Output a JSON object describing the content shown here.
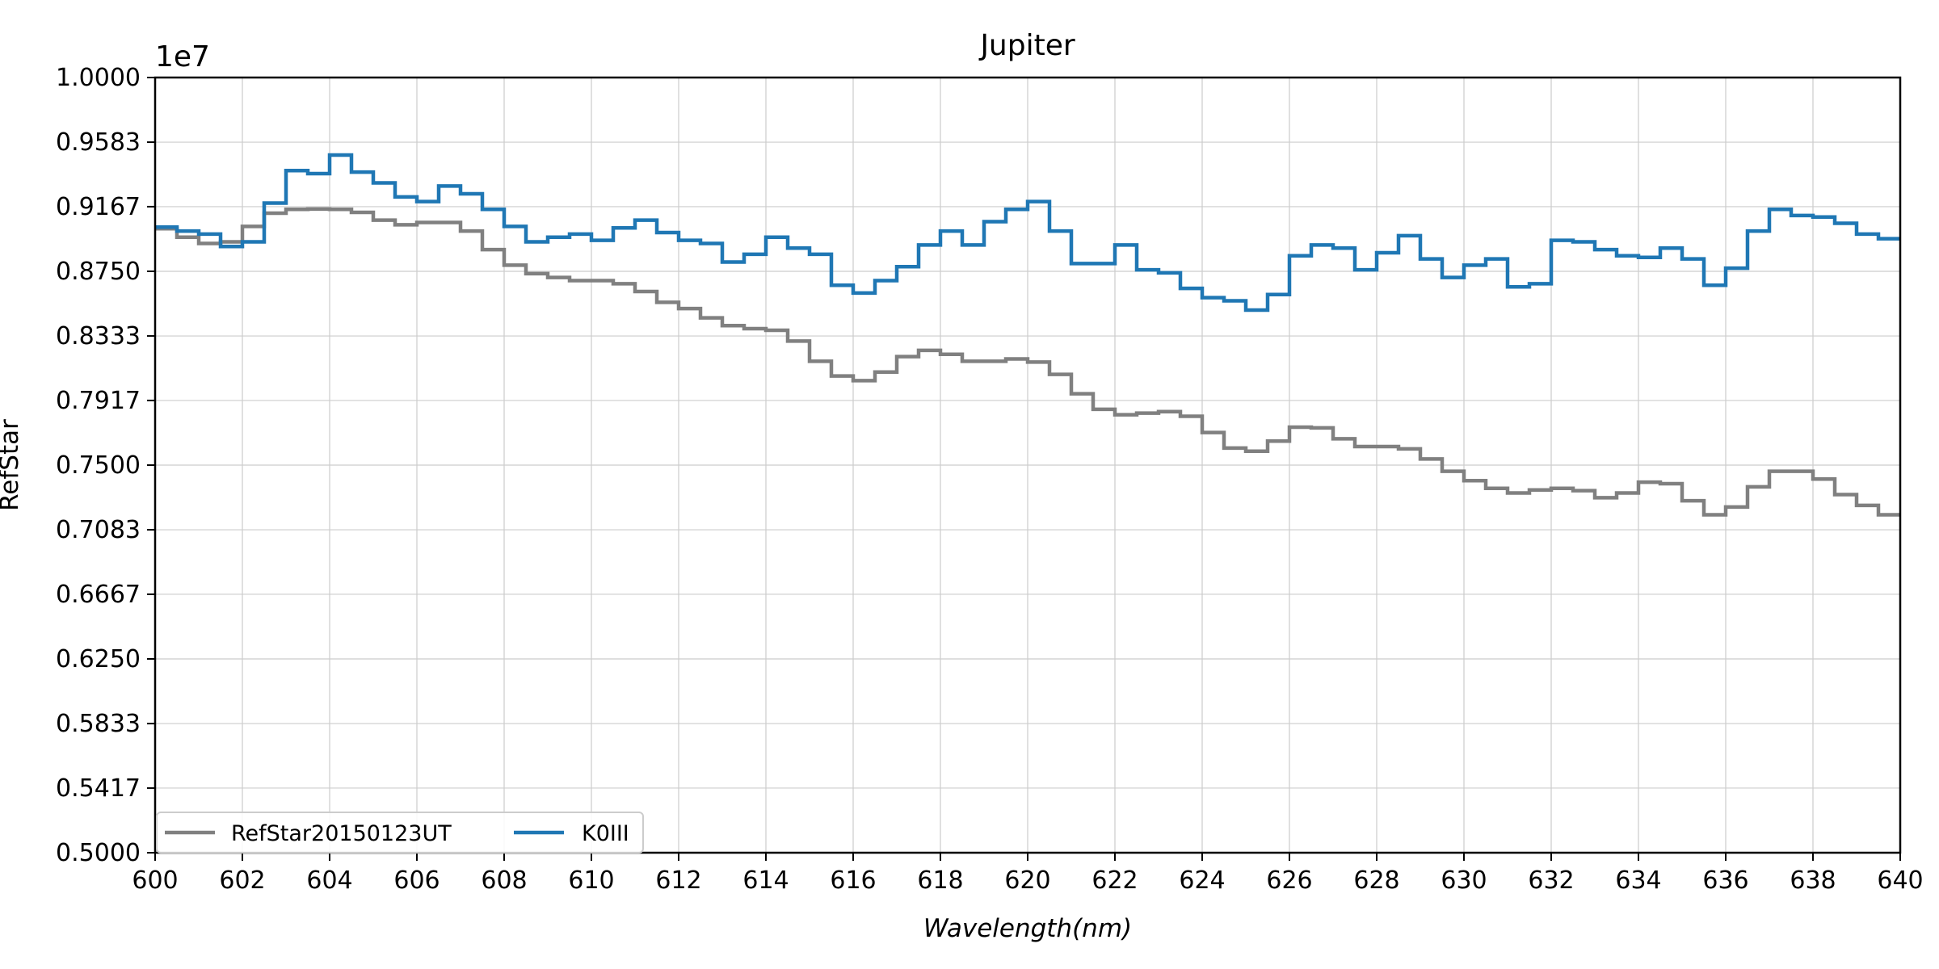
{
  "chart_data": {
    "type": "line",
    "title": "Jupiter",
    "xlabel": "Wavelength(nm)",
    "ylabel": "RefStar",
    "y_offset_label": "1e7",
    "xlim": [
      600,
      640
    ],
    "ylim": [
      0.5,
      1.0
    ],
    "x_ticks": [
      "600",
      "602",
      "604",
      "606",
      "608",
      "610",
      "612",
      "614",
      "616",
      "618",
      "620",
      "622",
      "624",
      "626",
      "628",
      "630",
      "632",
      "634",
      "636",
      "638",
      "640"
    ],
    "y_ticks": [
      "0.5000",
      "0.5417",
      "0.5833",
      "0.6250",
      "0.6667",
      "0.7083",
      "0.7500",
      "0.7917",
      "0.8333",
      "0.8750",
      "0.9167",
      "0.9583",
      "1.0000"
    ],
    "grid": true,
    "legend_position": "lower-left",
    "step": true,
    "x": [
      600.0,
      600.5,
      601.0,
      601.5,
      602.0,
      602.5,
      603.0,
      603.5,
      604.0,
      604.5,
      605.0,
      605.5,
      606.0,
      606.5,
      607.0,
      607.5,
      608.0,
      608.5,
      609.0,
      609.5,
      610.0,
      610.5,
      611.0,
      611.5,
      612.0,
      612.5,
      613.0,
      613.5,
      614.0,
      614.5,
      615.0,
      615.5,
      616.0,
      616.5,
      617.0,
      617.5,
      618.0,
      618.5,
      619.0,
      619.5,
      620.0,
      620.5,
      621.0,
      621.5,
      622.0,
      622.5,
      623.0,
      623.5,
      624.0,
      624.5,
      625.0,
      625.5,
      626.0,
      626.5,
      627.0,
      627.5,
      628.0,
      628.5,
      629.0,
      629.5,
      630.0,
      630.5,
      631.0,
      631.5,
      632.0,
      632.5,
      633.0,
      633.5,
      634.0,
      634.5,
      635.0,
      635.5,
      636.0,
      636.5,
      637.0,
      637.5,
      638.0,
      638.5,
      639.0,
      639.5
    ],
    "series": [
      {
        "name": "RefStar20150123UT",
        "color": "#808080",
        "values": [
          0.9025,
          0.897,
          0.893,
          0.894,
          0.904,
          0.9125,
          0.915,
          0.9152,
          0.915,
          0.913,
          0.908,
          0.905,
          0.9065,
          0.9065,
          0.901,
          0.889,
          0.879,
          0.8735,
          0.871,
          0.869,
          0.869,
          0.867,
          0.862,
          0.855,
          0.851,
          0.845,
          0.84,
          0.838,
          0.837,
          0.83,
          0.817,
          0.8075,
          0.8045,
          0.81,
          0.82,
          0.824,
          0.8215,
          0.817,
          0.817,
          0.8185,
          0.8165,
          0.8085,
          0.796,
          0.786,
          0.7825,
          0.7835,
          0.7845,
          0.7815,
          0.771,
          0.761,
          0.759,
          0.7655,
          0.7745,
          0.774,
          0.767,
          0.762,
          0.762,
          0.7605,
          0.754,
          0.746,
          0.74,
          0.735,
          0.732,
          0.734,
          0.735,
          0.7335,
          0.729,
          0.732,
          0.739,
          0.738,
          0.727,
          0.718,
          0.723,
          0.736,
          0.746,
          0.746,
          0.741,
          0.731,
          0.724,
          0.718
        ]
      },
      {
        "name": "K0III",
        "color": "#1f77b4",
        "values": [
          0.9035,
          0.901,
          0.899,
          0.891,
          0.894,
          0.919,
          0.94,
          0.938,
          0.95,
          0.939,
          0.932,
          0.923,
          0.92,
          0.93,
          0.925,
          0.915,
          0.904,
          0.894,
          0.897,
          0.899,
          0.895,
          0.903,
          0.908,
          0.9,
          0.895,
          0.893,
          0.881,
          0.886,
          0.897,
          0.89,
          0.886,
          0.866,
          0.861,
          0.869,
          0.878,
          0.892,
          0.901,
          0.892,
          0.907,
          0.915,
          0.92,
          0.901,
          0.88,
          0.88,
          0.892,
          0.876,
          0.874,
          0.864,
          0.858,
          0.856,
          0.85,
          0.86,
          0.885,
          0.892,
          0.89,
          0.876,
          0.887,
          0.898,
          0.883,
          0.871,
          0.879,
          0.883,
          0.865,
          0.867,
          0.895,
          0.894,
          0.889,
          0.885,
          0.884,
          0.89,
          0.883,
          0.866,
          0.877,
          0.901,
          0.915,
          0.911,
          0.91,
          0.906,
          0.899,
          0.896
        ]
      }
    ]
  }
}
